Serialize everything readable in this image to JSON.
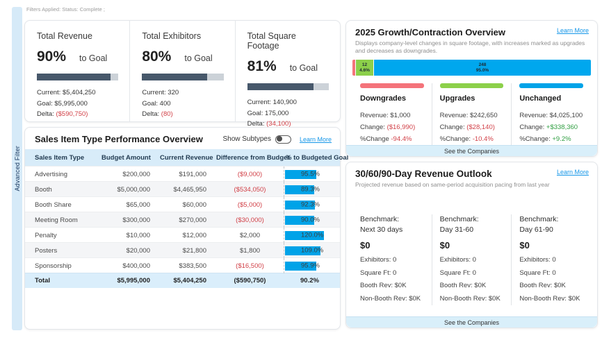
{
  "colors": {
    "accent_blue": "#00a3e8",
    "bar_red": "#f4737a",
    "bar_green": "#8cd04a",
    "kpi_fill": "#47586b",
    "negative_text": "#d13f46",
    "positive_text": "#2f9e41",
    "link_blue": "#1496e8",
    "light_blue_bg": "#d8ecf9"
  },
  "filters_bar": {
    "text": "Filters Applied: Status: Complete ;"
  },
  "sidebar": {
    "label": "Advanced Filter"
  },
  "kpi_cards": [
    {
      "title": "Total Revenue",
      "percent": "90%",
      "to_goal": "to Goal",
      "progress_pct": 90,
      "current": "Current: $5,404,250",
      "goal": "Goal: $5,995,000",
      "delta_label": "Delta: ",
      "delta_value": "($590,750)"
    },
    {
      "title": "Total Exhibitors",
      "percent": "80%",
      "to_goal": "to Goal",
      "progress_pct": 80,
      "current": "Current: 320",
      "goal": "Goal: 400",
      "delta_label": "Delta: ",
      "delta_value": "(80)"
    },
    {
      "title": "Total Square Footage",
      "percent": "81%",
      "to_goal": "to Goal",
      "progress_pct": 81,
      "current": "Current: 140,900",
      "goal": "Goal: 175,000",
      "delta_label": "Delta: ",
      "delta_value": "(34,100)"
    }
  ],
  "sales_table": {
    "title": "Sales Item Type Performance Overview",
    "show_subtypes_label": "Show Subtypes",
    "learn_more": "Learn More",
    "columns": [
      "Sales Item Type",
      "Budget Amount",
      "Current Revenue",
      "Difference from Budget",
      "% to Budgeted Goal"
    ],
    "rows": [
      {
        "type": "Advertising",
        "budget": "$200,000",
        "revenue": "$191,000",
        "diff": "($9,000)",
        "diff_neg": true,
        "pct": 95.5,
        "pct_label": "95.5%"
      },
      {
        "type": "Booth",
        "budget": "$5,000,000",
        "revenue": "$4,465,950",
        "diff": "($534,050)",
        "diff_neg": true,
        "pct": 89.3,
        "pct_label": "89.3%"
      },
      {
        "type": "Booth Share",
        "budget": "$65,000",
        "revenue": "$60,000",
        "diff": "($5,000)",
        "diff_neg": true,
        "pct": 92.3,
        "pct_label": "92.3%"
      },
      {
        "type": "Meeting Room",
        "budget": "$300,000",
        "revenue": "$270,000",
        "diff": "($30,000)",
        "diff_neg": true,
        "pct": 90.0,
        "pct_label": "90.0%"
      },
      {
        "type": "Penalty",
        "budget": "$10,000",
        "revenue": "$12,000",
        "diff": "$2,000",
        "diff_neg": false,
        "pct": 120.0,
        "pct_label": "120.0%"
      },
      {
        "type": "Posters",
        "budget": "$20,000",
        "revenue": "$21,800",
        "diff": "$1,800",
        "diff_neg": false,
        "pct": 109.0,
        "pct_label": "109.0%"
      },
      {
        "type": "Sponsorship",
        "budget": "$400,000",
        "revenue": "$383,500",
        "diff": "($16,500)",
        "diff_neg": true,
        "pct": 95.9,
        "pct_label": "95.9%"
      }
    ],
    "total": {
      "type": "Total",
      "budget": "$5,995,000",
      "revenue": "$5,404,250",
      "diff": "($590,750)",
      "pct_label": "90.2%"
    }
  },
  "growth_card": {
    "title": "2025 Growth/Contraction Overview",
    "learn_more": "Learn More",
    "subtitle": "Displays company-level changes in square footage, with increases marked as upgrades and decreases as downgrades.",
    "stacked_bar": {
      "segments": [
        {
          "name": "downgrades",
          "count": "",
          "pct": 0.4,
          "pct_label": ""
        },
        {
          "name": "upgrades",
          "count": "12",
          "pct": 4.6,
          "pct_label": "4.6%"
        },
        {
          "name": "unchanged",
          "count": "248",
          "pct": 95.0,
          "pct_label": "95.0%"
        }
      ]
    },
    "groups": [
      {
        "heading": "Downgrades",
        "revenue": "Revenue: $1,000",
        "change_label": "Change: ",
        "change_value": "($16,990)",
        "pct_change_label": "%Change ",
        "pct_change_value": "-94.4%"
      },
      {
        "heading": "Upgrades",
        "revenue": "Revenue: $242,650",
        "change_label": "Change: ",
        "change_value": "($28,140)",
        "pct_change_label": "%Change: ",
        "pct_change_value": "-10.4%"
      },
      {
        "heading": "Unchanged",
        "revenue": "Revenue: $4,025,100",
        "change_label": "Change: ",
        "change_value": "+$338,360",
        "pct_change_label": "%Change: ",
        "pct_change_value": "+9.2%"
      }
    ],
    "footer": "See the Companies"
  },
  "outlook_card": {
    "title": "30/60/90-Day Revenue Outlook",
    "learn_more": "Learn More",
    "subtitle": "Projected revenue based on same-period acquisition pacing from last year",
    "periods": [
      {
        "benchmark": "Benchmark:",
        "period": "Next 30 days",
        "amount": "$0",
        "exhibitors": "Exhibitors: 0",
        "square_ft": "Square Ft: 0",
        "booth_rev": "Booth Rev: $0K",
        "non_booth_rev": "Non-Booth Rev: $0K"
      },
      {
        "benchmark": "Benchmark:",
        "period": "Day 31-60",
        "amount": "$0",
        "exhibitors": "Exhibitors: 0",
        "square_ft": "Square Ft: 0",
        "booth_rev": "Booth Rev: $0K",
        "non_booth_rev": "Non-Booth Rev: $0K"
      },
      {
        "benchmark": "Benchmark:",
        "period": "Day 61-90",
        "amount": "$0",
        "exhibitors": "Exhibitors: 0",
        "square_ft": "Square Ft: 0",
        "booth_rev": "Booth Rev: $0K",
        "non_booth_rev": "Non-Booth Rev: $0K"
      }
    ],
    "footer": "See the Companies"
  }
}
